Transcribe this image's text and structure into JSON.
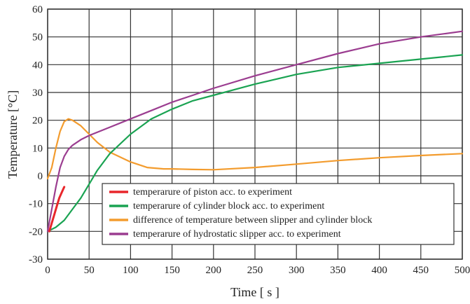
{
  "chart_data": {
    "type": "line",
    "xlabel": "Time [ s ]",
    "ylabel": "Temperature [°C]",
    "xlim": [
      0,
      500
    ],
    "ylim": [
      -30,
      60
    ],
    "x_ticks": [
      0,
      50,
      100,
      150,
      200,
      250,
      300,
      350,
      400,
      450,
      500
    ],
    "y_ticks": [
      -30,
      -20,
      -10,
      0,
      10,
      20,
      30,
      40,
      50,
      60
    ],
    "grid": true,
    "legend_position": "bottom-center",
    "series": [
      {
        "name": "temperarure of piston acc. to experiment",
        "color": "#e8262b",
        "x": [
          2,
          5,
          8,
          11,
          14,
          17,
          20
        ],
        "y": [
          -20,
          -17,
          -14,
          -11,
          -8,
          -6,
          -4
        ]
      },
      {
        "name": "temperarure of cylinder block acc. to experiment",
        "color": "#1aa352",
        "x": [
          0,
          10,
          20,
          30,
          40,
          50,
          60,
          75,
          100,
          125,
          150,
          175,
          200,
          250,
          300,
          350,
          400,
          450,
          500
        ],
        "y": [
          -20,
          -18.5,
          -16,
          -12,
          -8,
          -3,
          2,
          8,
          15,
          20.5,
          24,
          27,
          29,
          33,
          36.5,
          39,
          40.5,
          42,
          43.5
        ]
      },
      {
        "name": "difference of temperature between slipper and cylinder block",
        "color": "#f39c2e",
        "x": [
          0,
          5,
          10,
          15,
          20,
          25,
          30,
          40,
          50,
          60,
          75,
          100,
          120,
          140,
          150,
          175,
          200,
          250,
          300,
          350,
          400,
          450,
          500
        ],
        "y": [
          -1,
          3,
          10,
          16,
          19.5,
          20.5,
          20,
          18,
          15,
          12,
          8.5,
          5,
          3,
          2.5,
          2.5,
          2.3,
          2.2,
          3,
          4.2,
          5.5,
          6.5,
          7.3,
          8
        ]
      },
      {
        "name": "temperarure of hydrostatic slipper acc. to experiment",
        "color": "#9b3d90",
        "x": [
          0,
          5,
          10,
          15,
          20,
          25,
          30,
          40,
          50,
          75,
          100,
          125,
          150,
          175,
          200,
          250,
          300,
          350,
          400,
          450,
          500
        ],
        "y": [
          -20,
          -12,
          -4,
          3,
          7,
          9.5,
          11,
          13,
          14.5,
          17.5,
          20.5,
          23.5,
          26.5,
          29,
          31.5,
          36,
          40,
          44,
          47.5,
          50,
          52
        ]
      }
    ]
  }
}
